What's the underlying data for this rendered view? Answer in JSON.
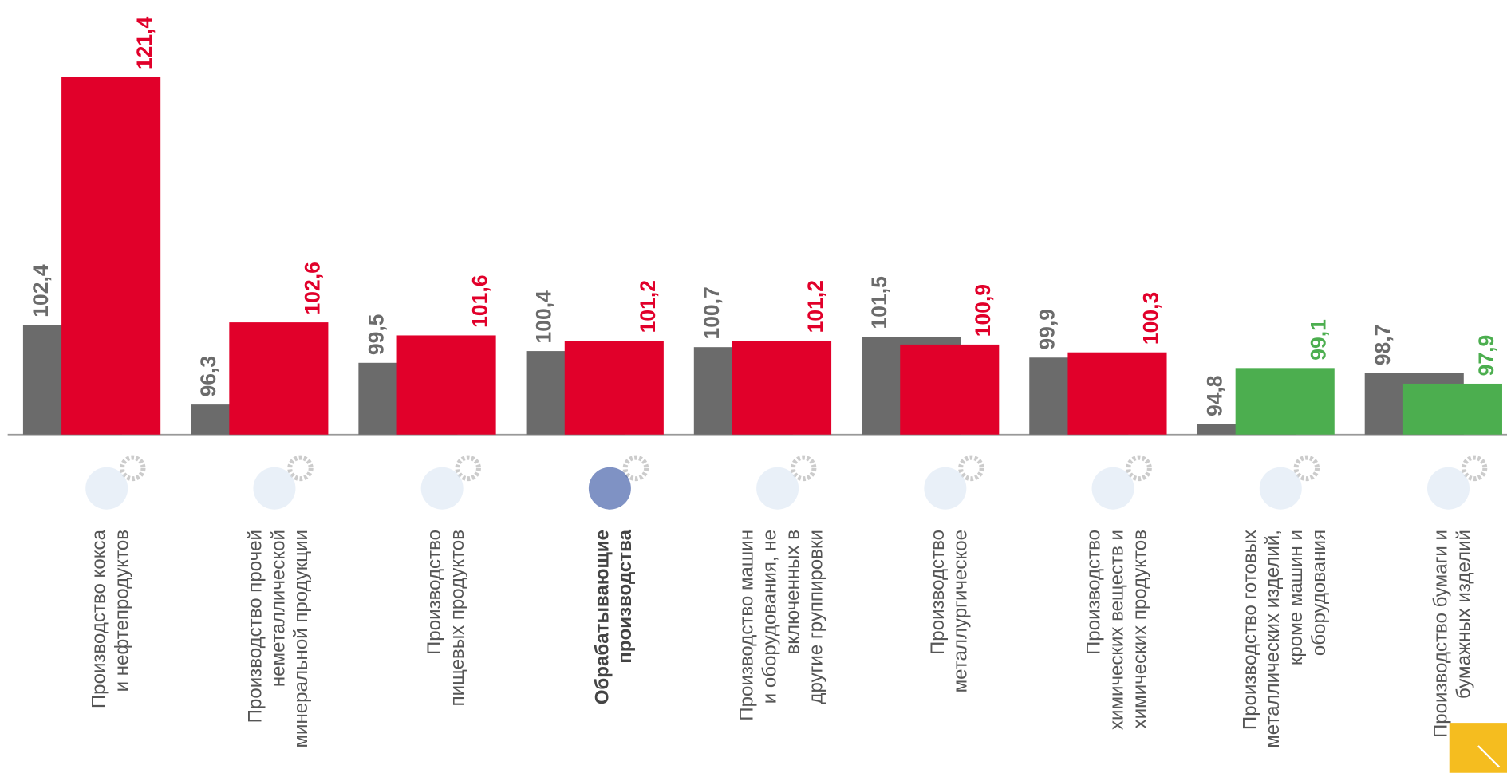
{
  "chart_data": {
    "type": "bar",
    "categories": [
      [
        "Производство кокса",
        "и нефтепродуктов"
      ],
      [
        "Производство прочей",
        "неметаллической",
        "минеральной продукции"
      ],
      [
        "Производство",
        "пищевых продуктов"
      ],
      [
        "Обрабатывающие",
        "производства"
      ],
      [
        "Производство машин",
        "и оборудования, не",
        "включенных в",
        "другие группировки"
      ],
      [
        "Производство",
        "металлургическое"
      ],
      [
        "Производство",
        "химических веществ и",
        "химических продуктов"
      ],
      [
        "Производство готовых",
        "металлических изделий,",
        "кроме машин и",
        "оборудования"
      ],
      [
        "Производство бумаги и",
        "бумажных изделий"
      ]
    ],
    "highlight": 3,
    "series": [
      {
        "color": "#6b6b6b",
        "values": [
          102.4,
          96.3,
          99.5,
          100.4,
          100.7,
          101.5,
          99.9,
          94.8,
          98.7
        ],
        "value_labels": [
          "102,4",
          "96,3",
          "99,5",
          "100,4",
          "100,7",
          "101,5",
          "99,9",
          "94,8",
          "98,7"
        ]
      },
      {
        "colors": [
          "#e1002a",
          "#e1002a",
          "#e1002a",
          "#e1002a",
          "#e1002a",
          "#e1002a",
          "#e1002a",
          "#4cae4f",
          "#4cae4f"
        ],
        "values": [
          121.4,
          102.6,
          101.6,
          101.2,
          101.2,
          100.9,
          100.3,
          99.1,
          97.9
        ],
        "value_labels": [
          "121,4",
          "102,6",
          "101,6",
          "101,2",
          "101,2",
          "100,9",
          "100,3",
          "99,1",
          "97,9"
        ]
      }
    ],
    "ylim": [
      94,
      127.3
    ]
  }
}
